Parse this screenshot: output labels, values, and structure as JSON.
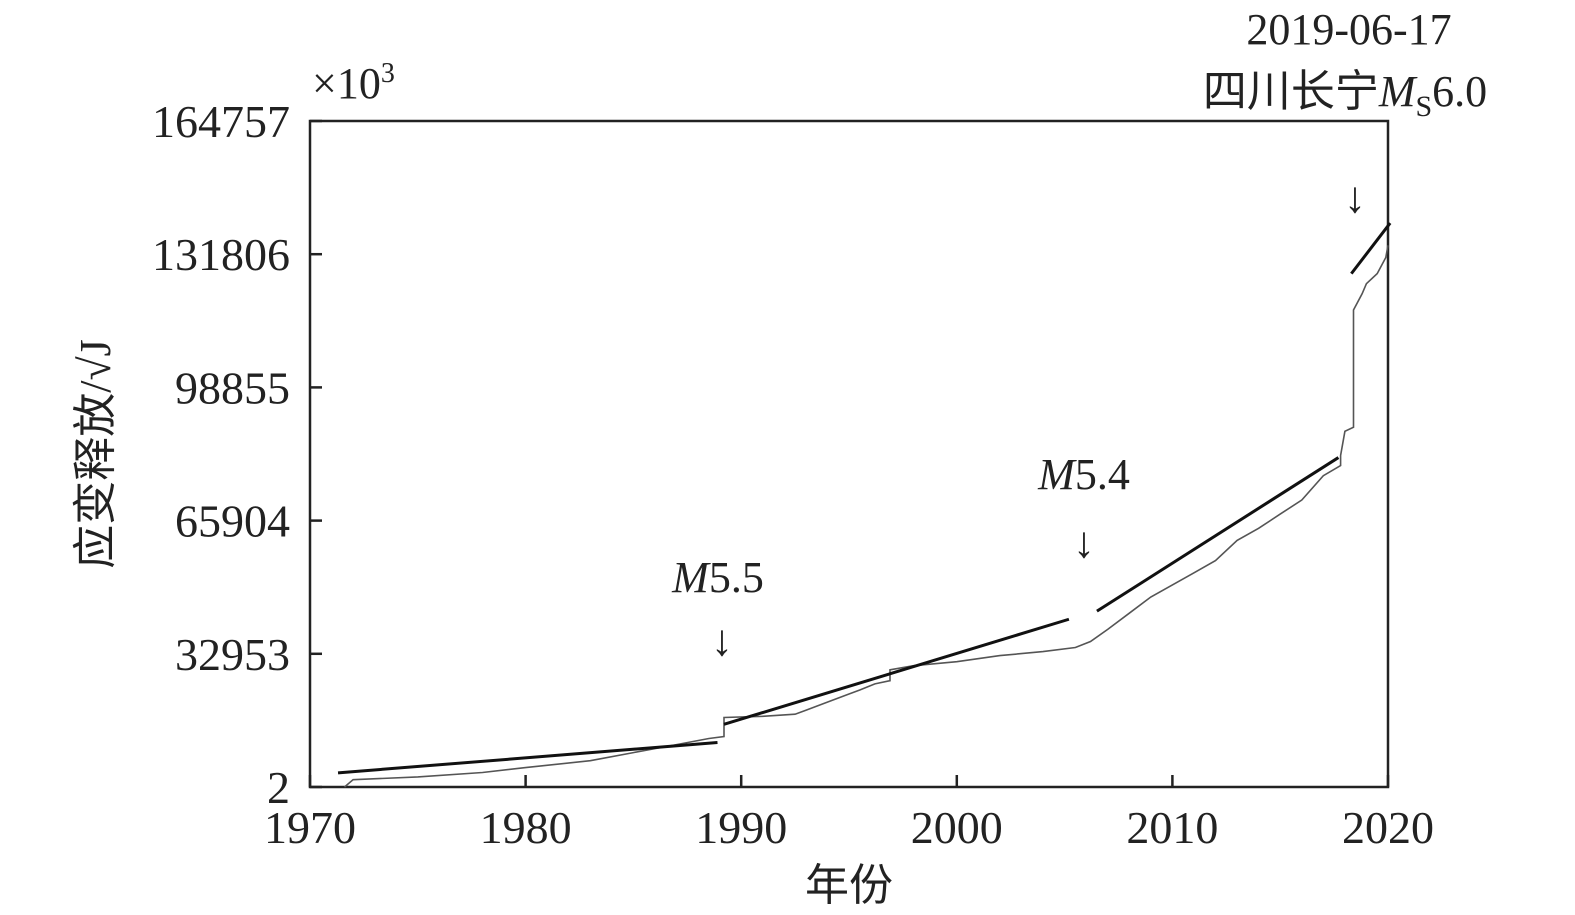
{
  "chart_data": {
    "type": "line",
    "multiplier_label": "×10",
    "multiplier_exponent": "3",
    "xlabel": "年份",
    "ylabel": "应变释放/√J",
    "xlim": [
      1970,
      2020
    ],
    "ylim": [
      2,
      164757
    ],
    "x_ticks": [
      1970,
      1980,
      1990,
      2000,
      2010,
      2020
    ],
    "y_ticks": [
      2,
      32953,
      65904,
      98855,
      131806,
      164757
    ],
    "grid": false,
    "series": [
      {
        "style": "gray-step",
        "points": [
          [
            1971.6,
            2
          ],
          [
            1972,
            1800
          ],
          [
            1975,
            2500
          ],
          [
            1978,
            3600
          ],
          [
            1980,
            4800
          ],
          [
            1983,
            6500
          ],
          [
            1985,
            8500
          ],
          [
            1987,
            10500
          ],
          [
            1988.5,
            12000
          ],
          [
            1989.2,
            12500
          ],
          [
            1989.2,
            17200
          ],
          [
            1991,
            17500
          ],
          [
            1992.5,
            18000
          ],
          [
            1993,
            19000
          ],
          [
            1994,
            21000
          ],
          [
            1995,
            23000
          ],
          [
            1995.5,
            24000
          ],
          [
            1996.2,
            25500
          ],
          [
            1996.9,
            26300
          ],
          [
            1996.9,
            29000
          ],
          [
            1998,
            30000
          ],
          [
            2000,
            31000
          ],
          [
            2002,
            32500
          ],
          [
            2004,
            33500
          ],
          [
            2005.5,
            34500
          ],
          [
            2006.2,
            36000
          ],
          [
            2007,
            39000
          ],
          [
            2008,
            43000
          ],
          [
            2009,
            47000
          ],
          [
            2010,
            50000
          ],
          [
            2011,
            53000
          ],
          [
            2012,
            56000
          ],
          [
            2013,
            61000
          ],
          [
            2014,
            64000
          ],
          [
            2015,
            67500
          ],
          [
            2016,
            71000
          ],
          [
            2017,
            77000
          ],
          [
            2017.8,
            79500
          ],
          [
            2017.8,
            82000
          ],
          [
            2018,
            88000
          ],
          [
            2018.4,
            89000
          ],
          [
            2018.4,
            118000
          ],
          [
            2018.8,
            122000
          ],
          [
            2019,
            124500
          ],
          [
            2019.5,
            127000
          ],
          [
            2019.9,
            131000
          ],
          [
            2020,
            134000
          ]
        ]
      },
      {
        "style": "black-trend",
        "segments": [
          [
            [
              1971.3,
              3500
            ],
            [
              1988.9,
              11000
            ]
          ],
          [
            [
              1989.2,
              15500
            ],
            [
              2005.2,
              41500
            ]
          ],
          [
            [
              2006.5,
              43500
            ],
            [
              2017.7,
              81500
            ]
          ],
          [
            [
              2018.3,
              127000
            ],
            [
              2020.1,
              139500
            ]
          ]
        ]
      }
    ],
    "annotations": [
      {
        "label_italic": "M",
        "label_rest": "5.5",
        "x": 1989.2
      },
      {
        "label_italic": "M",
        "label_rest": "5.4",
        "x": 2006
      },
      {
        "line1": "2019-06-17",
        "line2_prefix": "四川长宁",
        "line2_italic": "M",
        "line2_sub": "S",
        "line2_suffix": "6.0",
        "x": 2018.4
      }
    ],
    "arrow_glyph": "↓"
  }
}
